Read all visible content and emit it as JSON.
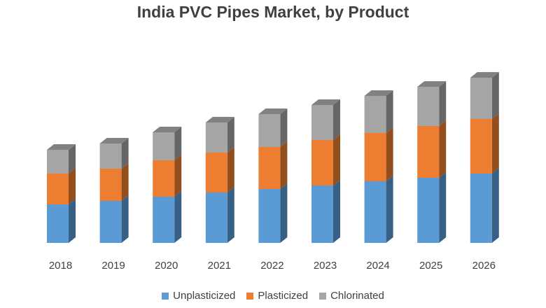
{
  "chart_data": {
    "type": "bar",
    "stacked": true,
    "three_d": true,
    "title": "India PVC Pipes Market, by Product",
    "categories": [
      "2018",
      "2019",
      "2020",
      "2021",
      "2022",
      "2023",
      "2024",
      "2025",
      "2026"
    ],
    "series": [
      {
        "name": "Unplasticized",
        "color": "#5b9bd5",
        "values": [
          55,
          60,
          66,
          72,
          77,
          82,
          88,
          93,
          99
        ]
      },
      {
        "name": "Plasticized",
        "color": "#ed7d31",
        "values": [
          44,
          46,
          52,
          57,
          60,
          65,
          69,
          74,
          78
        ]
      },
      {
        "name": "Chlorinated",
        "color": "#a5a5a5",
        "values": [
          34,
          36,
          40,
          43,
          47,
          50,
          53,
          56,
          59
        ]
      }
    ],
    "legend_position": "bottom",
    "grid": false
  }
}
